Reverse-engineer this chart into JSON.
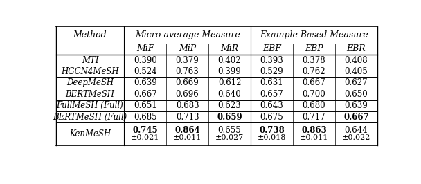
{
  "header_row1_cols": [
    "Method",
    "Micro-average Measure",
    "Example Based Measure"
  ],
  "header_row2_cols": [
    "MiF",
    "MiP",
    "MiR",
    "EBF",
    "EBP",
    "EBR"
  ],
  "rows": [
    {
      "method": "MTI",
      "values": [
        "0.390",
        "0.379",
        "0.402",
        "0.393",
        "0.378",
        "0.408"
      ],
      "bold": []
    },
    {
      "method": "HGCN4MeSH",
      "values": [
        "0.524",
        "0.763",
        "0.399",
        "0.529",
        "0.762",
        "0.405"
      ],
      "bold": []
    },
    {
      "method": "DeepMeSH",
      "values": [
        "0.639",
        "0.669",
        "0.612",
        "0.631",
        "0.667",
        "0.627"
      ],
      "bold": []
    },
    {
      "method": "BERTMeSH",
      "values": [
        "0.667",
        "0.696",
        "0.640",
        "0.657",
        "0.700",
        "0.650"
      ],
      "bold": []
    },
    {
      "method": "FullMeSH (Full)",
      "values": [
        "0.651",
        "0.683",
        "0.623",
        "0.643",
        "0.680",
        "0.639"
      ],
      "bold": []
    },
    {
      "method": "BERTMeSH (Full)",
      "values": [
        "0.685",
        "0.713",
        "0.659",
        "0.675",
        "0.717",
        "0.667"
      ],
      "bold": [
        2,
        5
      ]
    },
    {
      "method": "KenMeSH",
      "values": [
        "0.745",
        "0.864",
        "0.655",
        "0.738",
        "0.863",
        "0.644"
      ],
      "bold": [
        0,
        1,
        3,
        4
      ],
      "std": [
        "±0.021",
        "±0.011",
        "±0.027",
        "±0.018",
        "±0.011",
        "±0.022"
      ]
    }
  ],
  "fig_width": 6.08,
  "fig_height": 2.66,
  "dpi": 100
}
